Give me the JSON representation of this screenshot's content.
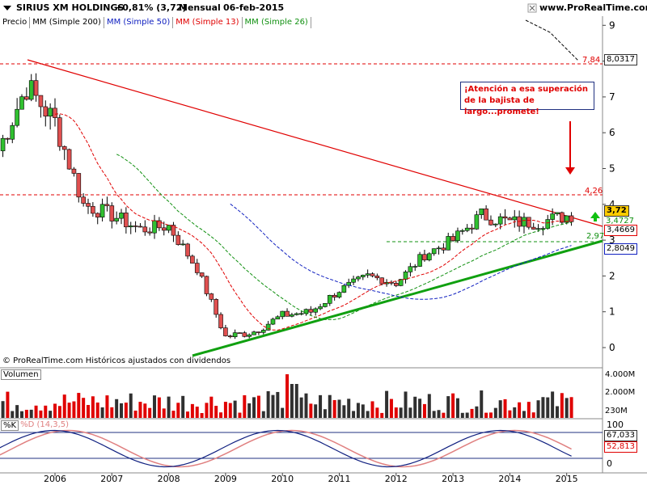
{
  "header": {
    "symbol": "SIRIUS XM HOLDINGS",
    "change": "+0,81% (3,72)",
    "period": "Mensual",
    "date": "06-feb-2015",
    "site": "www.ProRealTime.com"
  },
  "indicators": [
    {
      "label": "Precio",
      "color": "#000000"
    },
    {
      "label": "MM (Simple 200)",
      "color": "#000000"
    },
    {
      "label": "MM (Simple 50)",
      "color": "#1020c0"
    },
    {
      "label": "MM (Simple 13)",
      "color": "#e00000"
    },
    {
      "label": "MM (Simple 26)",
      "color": "#109010"
    }
  ],
  "annotation": {
    "line1": "¡Atención a esa superación",
    "line2": "de la bajista de largo...promete!"
  },
  "levels": {
    "top": "7,84",
    "mid": "4,26",
    "low": "2,97"
  },
  "price_labels": {
    "last": "3,72",
    "ma13": "3,4669",
    "ma26": "3,4727",
    "ma50": "2,8049",
    "ma200": "8,0317"
  },
  "copyright": "© ProRealTime.com Históricos ajustados con dividendos",
  "volume": {
    "label": "Volumen",
    "ticks": [
      "4.000M",
      "2.000M",
      "230M"
    ]
  },
  "stoch": {
    "k_label": "%K",
    "d_label": "%D (14,3,5)",
    "ticks": [
      "100",
      "0"
    ],
    "k_value": "67,033",
    "d_value": "52,813"
  },
  "colors": {
    "up": "#10a010",
    "down": "#e00000",
    "bearish_trend": "#e00000",
    "bullish_trend": "#10a010",
    "ma50": "#1020c0",
    "ma13": "#e00000",
    "ma26": "#109010",
    "ma200": "#000000"
  },
  "chart_data": {
    "type": "line",
    "title": "SIRIUS XM HOLDINGS",
    "ylim": [
      0,
      9
    ],
    "y_ticks": [
      0,
      1,
      2,
      3,
      4,
      5,
      6,
      7,
      8,
      9
    ],
    "x_ticks": [
      "2006",
      "2007",
      "2008",
      "2009",
      "2010",
      "2011",
      "2012",
      "2013",
      "2014",
      "2015"
    ],
    "series": [
      {
        "name": "Precio",
        "x": [
          2005.0,
          2005.5,
          2006.0,
          2006.5,
          2007.0,
          2007.5,
          2008.0,
          2008.5,
          2009.0,
          2009.5,
          2010.0,
          2010.5,
          2011.0,
          2011.5,
          2012.0,
          2012.5,
          2013.0,
          2013.5,
          2014.0,
          2014.5,
          2015.1
        ],
        "values": [
          5.5,
          7.3,
          6.3,
          4.0,
          3.7,
          3.3,
          3.4,
          2.2,
          0.3,
          0.45,
          0.9,
          1.0,
          1.6,
          2.0,
          1.8,
          2.6,
          3.0,
          3.7,
          3.5,
          3.5,
          3.72
        ]
      }
    ]
  }
}
